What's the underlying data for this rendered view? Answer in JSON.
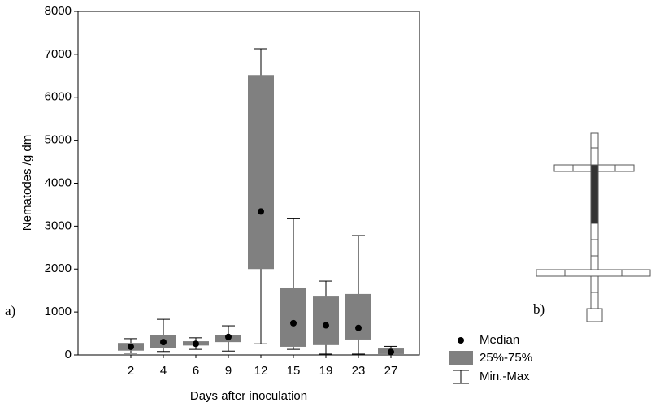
{
  "chart_data": {
    "type": "box",
    "x_label": "Days after inoculation",
    "y_label": "Nematodes /g dm",
    "categories": [
      "2",
      "4",
      "6",
      "9",
      "12",
      "15",
      "19",
      "23",
      "27"
    ],
    "min": [
      40,
      80,
      130,
      90,
      260,
      130,
      20,
      20,
      0
    ],
    "q1": [
      100,
      170,
      220,
      300,
      2000,
      190,
      230,
      360,
      20
    ],
    "median": [
      190,
      300,
      260,
      420,
      3340,
      740,
      690,
      630,
      70
    ],
    "q3": [
      280,
      470,
      320,
      470,
      6520,
      1570,
      1360,
      1420,
      150
    ],
    "max": [
      380,
      830,
      400,
      680,
      7130,
      3170,
      1720,
      2780,
      200
    ],
    "box_color": "#808080",
    "median_color": "#000000",
    "ylim": [
      0,
      8000
    ],
    "yticks": [
      0,
      1000,
      2000,
      3000,
      4000,
      5000,
      6000,
      7000,
      8000
    ],
    "legend": {
      "median": "Median",
      "box": "25%-75%",
      "whisker": "Min.-Max"
    },
    "panel_labels": [
      "a)",
      "b)"
    ]
  }
}
